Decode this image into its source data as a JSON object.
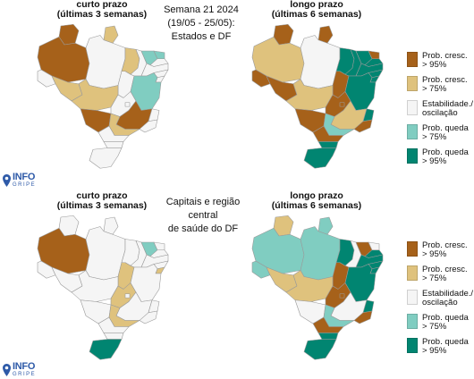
{
  "colors": {
    "prob_cresc_95": "#a6611a",
    "prob_cresc_75": "#dfc27d",
    "estabilidade": "#f5f5f5",
    "prob_queda_75": "#80cdc1",
    "prob_queda_95": "#018571",
    "border": "#9a9a9a"
  },
  "top": {
    "left_title_line1": "curto prazo",
    "left_title_line2": "(últimas 3 semanas)",
    "center_line1": "Semana 21 2024",
    "center_line2": "(19/05 - 25/05):",
    "center_line3": "Estados e DF",
    "right_title_line1": "longo prazo",
    "right_title_line2": "(últimas 6 semanas)"
  },
  "bottom": {
    "left_title_line1": "curto prazo",
    "left_title_line2": "(últimas 3 semanas)",
    "center_line1": "Capitais e região central",
    "center_line2": "de saúde do DF",
    "right_title_line1": "longo prazo",
    "right_title_line2": "(últimas 6 semanas)"
  },
  "legend": [
    {
      "label": "Prob. cresc.\n> 95%",
      "color_key": "prob_cresc_95"
    },
    {
      "label": "Prob. cresc.\n> 75%",
      "color_key": "prob_cresc_75"
    },
    {
      "label": "Estabilidade./\noscilação",
      "color_key": "estabilidade"
    },
    {
      "label": "Prob. queda\n> 75%",
      "color_key": "prob_queda_75"
    },
    {
      "label": "Prob. queda\n> 95%",
      "color_key": "prob_queda_95"
    }
  ],
  "logo": {
    "main": "INFO",
    "sub": "GRIPE"
  },
  "maps": {
    "top_left": {
      "RR": "cresc95",
      "AP": "cresc75",
      "AM": "cresc95",
      "PA": "estab",
      "AC": "estab",
      "RO": "cresc75",
      "TO": "estab",
      "MA": "cresc75",
      "PI": "estab",
      "CE": "queda75",
      "RN": "queda75",
      "PB": "estab",
      "PE": "estab",
      "AL": "estab",
      "SE": "estab",
      "BA": "queda75",
      "MT": "cresc75",
      "GO": "estab",
      "DF": "estab",
      "MS": "cresc95",
      "MG": "cresc95",
      "ES": "estab",
      "RJ": "estab",
      "SP": "cresc75",
      "PR": "estab",
      "SC": "estab",
      "RS": "estab"
    },
    "top_right": {
      "RR": "cresc95",
      "AP": "cresc95",
      "AM": "cresc75",
      "PA": "estab",
      "AC": "cresc95",
      "RO": "cresc95",
      "TO": "cresc95",
      "MA": "queda95",
      "PI": "queda95",
      "CE": "queda95",
      "RN": "cresc95",
      "PB": "queda95",
      "PE": "queda95",
      "AL": "queda95",
      "SE": "queda95",
      "BA": "queda95",
      "MT": "cresc75",
      "GO": "cresc95",
      "DF": "cresc95",
      "MS": "cresc95",
      "MG": "cresc75",
      "ES": "queda95",
      "RJ": "cresc95",
      "SP": "queda75",
      "PR": "cresc95",
      "SC": "queda95",
      "RS": "queda95"
    },
    "bottom_left": {
      "RR": "estab",
      "AP": "estab",
      "AM": "cresc95",
      "PA": "estab",
      "AC": "estab",
      "RO": "estab",
      "TO": "cresc75",
      "MA": "estab",
      "PI": "estab",
      "CE": "queda75",
      "RN": "estab",
      "PB": "estab",
      "PE": "estab",
      "AL": "estab",
      "SE": "cresc75",
      "BA": "estab",
      "MT": "estab",
      "GO": "cresc75",
      "DF": "estab",
      "MS": "estab",
      "MG": "estab",
      "ES": "estab",
      "RJ": "estab",
      "SP": "cresc75",
      "PR": "estab",
      "SC": "estab",
      "RS": "queda95"
    },
    "bottom_right": {
      "RR": "cresc75",
      "AP": "queda75",
      "AM": "queda75",
      "PA": "queda75",
      "AC": "queda75",
      "RO": "cresc75",
      "TO": "cresc95",
      "MA": "queda95",
      "PI": "estab",
      "CE": "cresc95",
      "RN": "estab",
      "PB": "queda95",
      "PE": "queda95",
      "AL": "queda95",
      "SE": "queda95",
      "BA": "queda95",
      "MT": "cresc75",
      "GO": "cresc95",
      "DF": "cresc95",
      "MS": "estab",
      "MG": "estab",
      "ES": "queda95",
      "RJ": "cresc95",
      "SP": "queda75",
      "PR": "cresc95",
      "SC": "queda95",
      "RS": "queda95"
    }
  }
}
